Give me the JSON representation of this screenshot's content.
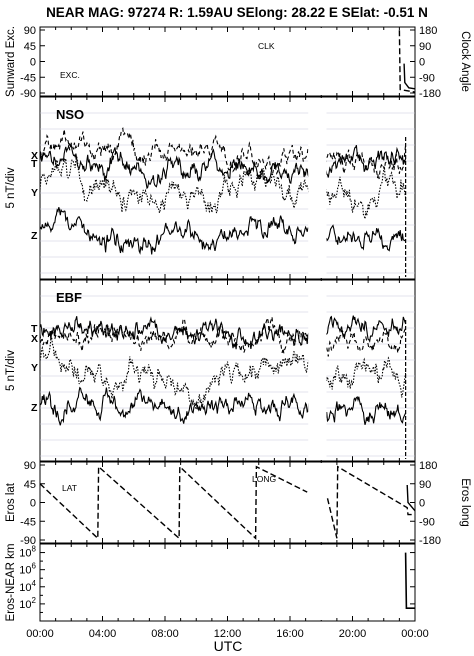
{
  "header": {
    "title": "NEAR MAG: 97274  R: 1.59AU  SElong:   28.22 E  SElat:   -0.51 N"
  },
  "chart_data": {
    "type": "line",
    "xlabel": "UTC",
    "x_ticks": [
      "00:00",
      "04:00",
      "08:00",
      "12:00",
      "16:00",
      "20:00",
      "00:00"
    ],
    "x_range_hours": [
      0,
      24
    ],
    "data_gap_hours": [
      17.1,
      18.4
    ],
    "panels": [
      {
        "id": "sunward",
        "ylabel_left": "Sunward Exc.",
        "ylabel_right": "Clock Angle",
        "yticks_left": [
          "90",
          "45",
          "0",
          "-45",
          "-90"
        ],
        "yticks_right": [
          "180",
          "90",
          "0",
          "-90",
          "-180"
        ],
        "ylim_left": [
          -90,
          90
        ],
        "ylim_right": [
          -180,
          180
        ],
        "series": [
          {
            "name": "CLK",
            "style": "dashed",
            "axis": "right",
            "x": [
              0,
              23.0,
              23.05,
              24
            ],
            "y": [
              179,
              179,
              -160,
              -175
            ]
          },
          {
            "name": "EXC.",
            "style": "solid",
            "axis": "left",
            "x": [
              0,
              23.3,
              23.35,
              23.6,
              24
            ],
            "y": [
              -6,
              -6,
              -60,
              -75,
              -78
            ]
          }
        ]
      },
      {
        "id": "nso",
        "title": "NSO",
        "ylabel_left": "5 nT/div",
        "components": [
          "T",
          "X",
          "Y",
          "Z"
        ]
      },
      {
        "id": "ebf",
        "title": "EBF",
        "ylabel_left": "5 nT/div",
        "components": [
          "T",
          "X",
          "Y",
          "Z"
        ]
      },
      {
        "id": "eros",
        "ylabel_left": "Eros lat",
        "ylabel_right": "Eros long",
        "yticks_left": [
          "90",
          "45",
          "0",
          "-45",
          "-90"
        ],
        "yticks_right": [
          "180",
          "90",
          "0",
          "-90",
          "-180"
        ],
        "ylim_left": [
          -90,
          90
        ],
        "ylim_right": [
          -180,
          180
        ],
        "series": [
          {
            "name": "LAT",
            "style": "solid",
            "axis": "left",
            "x": [
              0,
              23.5,
              23.55,
              24
            ],
            "y": [
              42,
              42,
              0,
              -20
            ]
          },
          {
            "name": "LONG",
            "style": "dashed",
            "axis": "right",
            "x": [
              0,
              3.7,
              3.75,
              8.9,
              8.95,
              13.8,
              13.85,
              17.1,
              18.4,
              19.0,
              19.05,
              23.5,
              23.55,
              24
            ],
            "y": [
              90,
              -172,
              172,
              -172,
              172,
              -172,
              172,
              50,
              20,
              -172,
              172,
              -25,
              -58,
              -58
            ]
          }
        ]
      },
      {
        "id": "range",
        "ylabel_left": "Eros-NEAR km",
        "yticks_left": [
          "10^8",
          "10^6",
          "10^4",
          "10^2"
        ],
        "yscale": "log",
        "ylim_left_exponent": [
          0,
          9
        ],
        "series": [
          {
            "name": "Eros-NEAR range",
            "style": "solid",
            "axis": "left",
            "x": [
              0,
              23.4,
              23.45,
              24
            ],
            "y_exponent": [
              8.0,
              8.0,
              1.5,
              1.5
            ]
          }
        ]
      }
    ]
  }
}
